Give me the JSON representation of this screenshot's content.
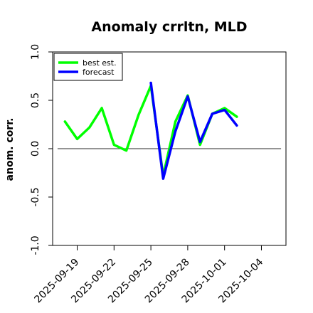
{
  "chart_data": {
    "type": "line",
    "title": "Anomaly crrltn, MLD",
    "xlabel": "",
    "ylabel": "anom. corr.",
    "ylim": [
      -1.0,
      1.0
    ],
    "yticks": [
      "-1.0",
      "-0.5",
      "0.0",
      "0.5",
      "1.0"
    ],
    "ytick_values": [
      -1.0,
      -0.5,
      0.0,
      0.5,
      1.0
    ],
    "x_tick_labels": [
      "2025-09-19",
      "2025-09-22",
      "2025-09-25",
      "2025-09-28",
      "2025-10-01",
      "2025-10-04"
    ],
    "x_tick_days": [
      0,
      3,
      6,
      9,
      12,
      15
    ],
    "x_tick_colors": [
      "#000000",
      "#000000",
      "#228b22",
      "#000000",
      "#000000",
      "#000000"
    ],
    "xlim_days": [
      -2,
      17
    ],
    "reference_line": 0.0,
    "grid": false,
    "legend_position": "top-left",
    "series": [
      {
        "name": "best est.",
        "color": "#00ff00",
        "x_days": [
          -1,
          0,
          1,
          2,
          3,
          4,
          5,
          6,
          7,
          8,
          9,
          10,
          11,
          12,
          13
        ],
        "values": [
          0.28,
          0.1,
          0.22,
          0.42,
          0.04,
          -0.02,
          0.35,
          0.65,
          -0.28,
          0.28,
          0.55,
          0.04,
          0.36,
          0.42,
          0.33
        ]
      },
      {
        "name": "forecast",
        "color": "#0000ff",
        "x_days": [
          6,
          7,
          8,
          9,
          10,
          11,
          12,
          13
        ],
        "values": [
          0.68,
          -0.31,
          0.18,
          0.54,
          0.07,
          0.36,
          0.4,
          0.24
        ]
      }
    ]
  }
}
